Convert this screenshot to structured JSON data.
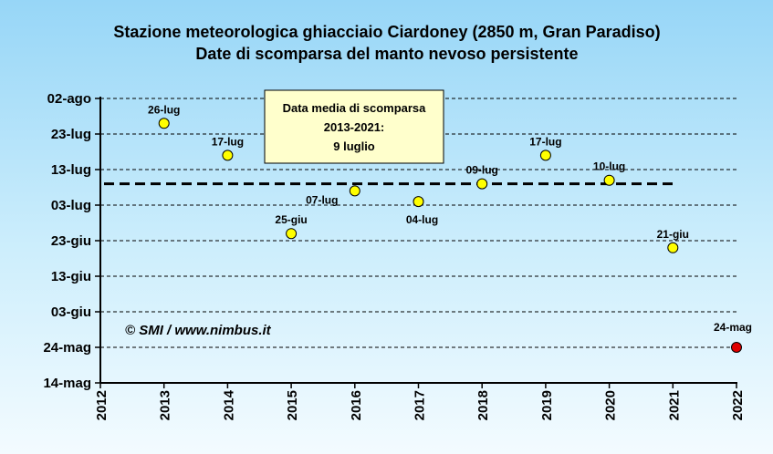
{
  "chart_data": {
    "type": "scatter",
    "title": "Stazione meteorologica ghiacciaio Ciardoney (2850 m, Gran Paradiso)",
    "subtitle": "Date di scomparsa del manto nevoso persistente",
    "x_ticks": [
      "2012",
      "2013",
      "2014",
      "2015",
      "2016",
      "2017",
      "2018",
      "2019",
      "2020",
      "2021",
      "2022"
    ],
    "y_ticks": [
      "02-ago",
      "23-lug",
      "13-lug",
      "03-lug",
      "23-giu",
      "13-giu",
      "03-giu",
      "24-mag",
      "14-mag"
    ],
    "xlim": [
      2012,
      2022
    ],
    "ylim": [
      "14-mag",
      "02-ago"
    ],
    "grid": "horizontal-dashed",
    "points": [
      {
        "x": 2013,
        "y": "26-lug",
        "label": "26-lug",
        "color": "#ffff00"
      },
      {
        "x": 2014,
        "y": "17-lug",
        "label": "17-lug",
        "color": "#ffff00"
      },
      {
        "x": 2015,
        "y": "25-giu",
        "label": "25-giu",
        "color": "#ffff00"
      },
      {
        "x": 2016,
        "y": "07-lug",
        "label": "07-lug",
        "color": "#ffff00"
      },
      {
        "x": 2017,
        "y": "04-lug",
        "label": "04-lug",
        "color": "#ffff00"
      },
      {
        "x": 2018,
        "y": "09-lug",
        "label": "09-lug",
        "color": "#ffff00"
      },
      {
        "x": 2019,
        "y": "17-lug",
        "label": "17-lug",
        "color": "#ffff00"
      },
      {
        "x": 2020,
        "y": "10-lug",
        "label": "10-lug",
        "color": "#ffff00"
      },
      {
        "x": 2021,
        "y": "21-giu",
        "label": "21-giu",
        "color": "#ffff00"
      },
      {
        "x": 2022,
        "y": "24-mag",
        "label": "24-mag",
        "color": "#e00000"
      }
    ],
    "mean_line": {
      "x_from": 2012,
      "x_to": 2021,
      "y": "09-lug",
      "style": "dashed"
    },
    "annotation": {
      "lines": [
        "Data media di scomparsa",
        "2013-2021:",
        "9 luglio"
      ]
    },
    "credit": "© SMI / www.nimbus.it"
  }
}
